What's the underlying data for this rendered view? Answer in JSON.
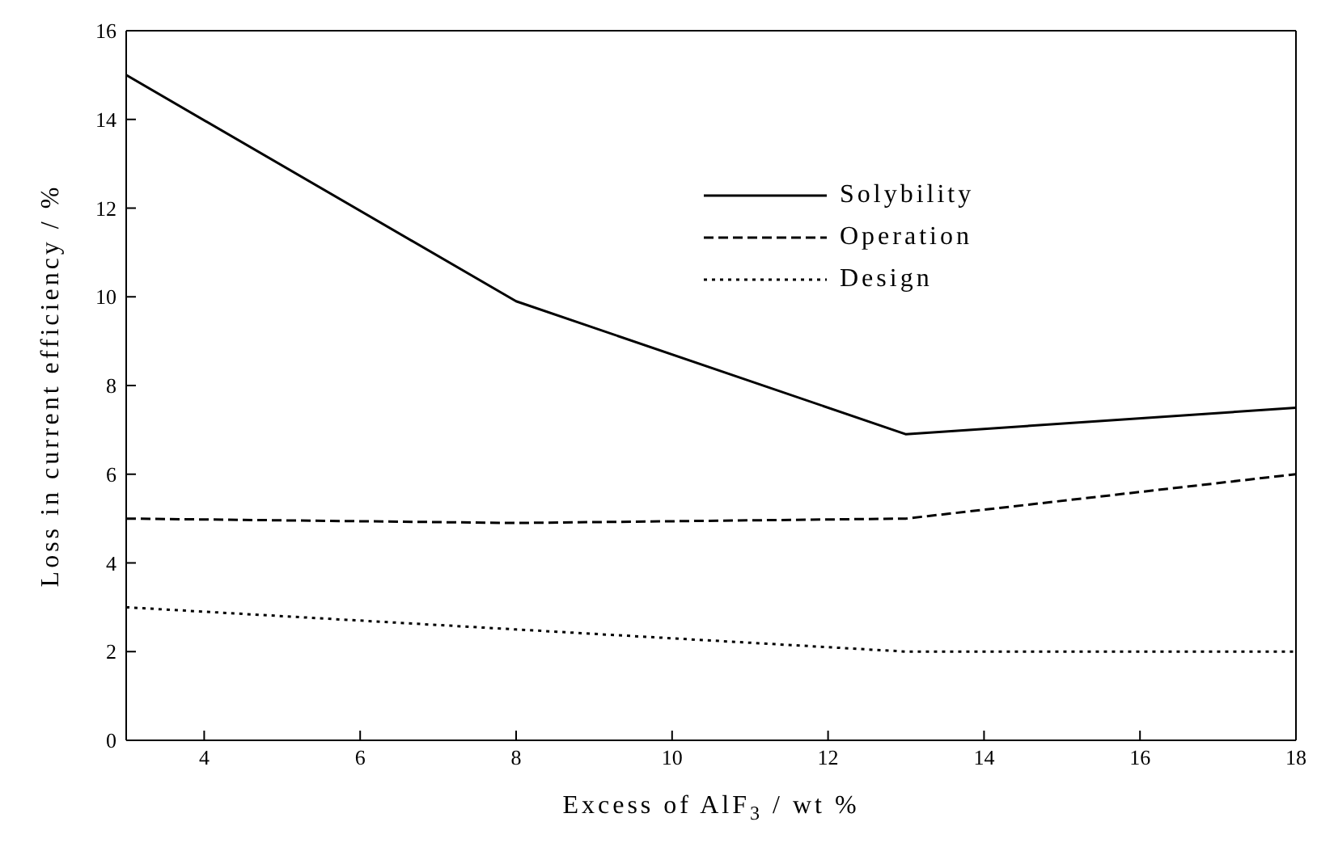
{
  "chart_data": {
    "type": "line",
    "xlabel": "Excess of AlF$_{3}$ / wt %",
    "ylabel": "Loss in current efficiency / %",
    "x": [
      3,
      8,
      13,
      18
    ],
    "series": [
      {
        "name": "Solybility",
        "color": "#000000",
        "line_style": "solid",
        "values": [
          15,
          9.9,
          6.9,
          7.5
        ]
      },
      {
        "name": "Operation",
        "color": "#000000",
        "line_style": "dashed",
        "values": [
          5,
          4.9,
          5,
          6
        ]
      },
      {
        "name": "Design",
        "color": "#000000",
        "line_style": "dotted",
        "values": [
          3,
          2.5,
          2,
          2
        ]
      }
    ],
    "xlim": [
      3,
      18
    ],
    "xticks": [
      4,
      6,
      8,
      10,
      12,
      14,
      16,
      18
    ],
    "ylim": [
      0,
      16
    ],
    "yticks": [
      0,
      2,
      4,
      6,
      8,
      10,
      12,
      14,
      16
    ],
    "legend": "top right",
    "marker": "none",
    "grid": false
  }
}
